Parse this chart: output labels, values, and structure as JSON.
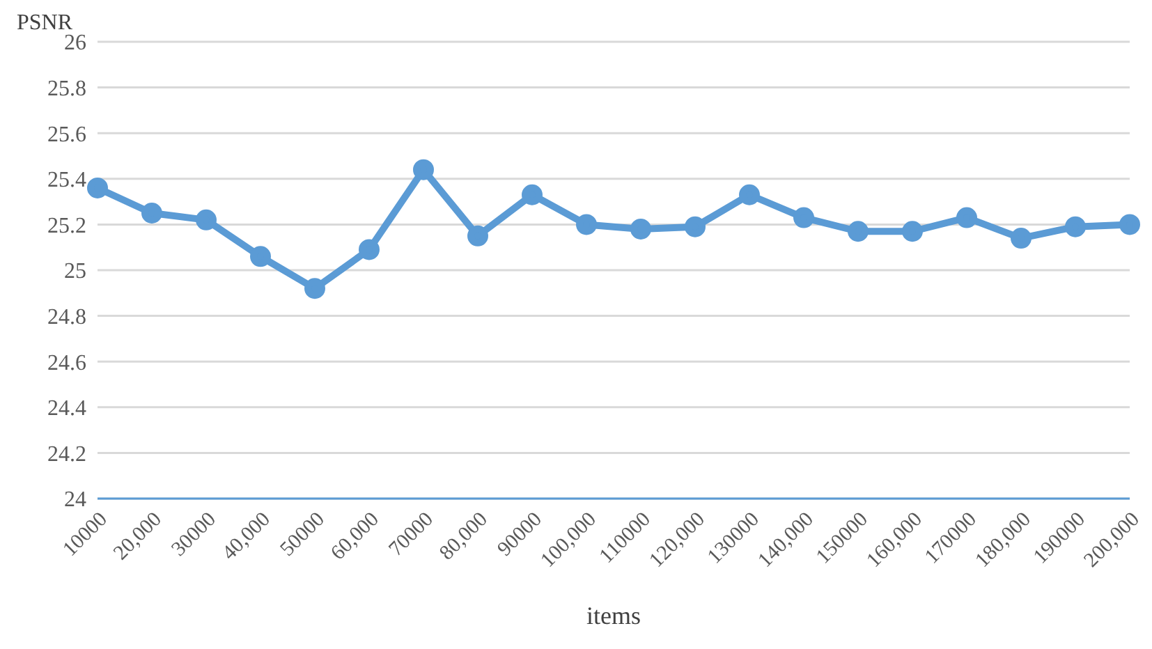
{
  "chart_data": {
    "type": "line",
    "ylabel": "PSNR",
    "xlabel": "items",
    "categories": [
      "10000",
      "20,000",
      "30000",
      "40,000",
      "50000",
      "60,000",
      "70000",
      "80,000",
      "90000",
      "100,000",
      "110000",
      "120,000",
      "130000",
      "140,000",
      "150000",
      "160,000",
      "170000",
      "180,000",
      "190000",
      "200,000"
    ],
    "series": [
      {
        "color": "#5b9bd5",
        "values": [
          25.36,
          25.25,
          25.22,
          25.06,
          24.92,
          25.09,
          25.44,
          25.15,
          25.33,
          25.2,
          25.18,
          25.19,
          25.33,
          25.23,
          25.17,
          25.17,
          25.23,
          25.14,
          25.19,
          25.2
        ]
      }
    ],
    "ylim": [
      24,
      26
    ],
    "yticks": [
      24,
      24.2,
      24.4,
      24.6,
      24.8,
      25,
      25.2,
      25.4,
      25.6,
      25.8,
      26
    ],
    "grid": "y",
    "marker": "circle",
    "line_style": "solid",
    "legend": false
  }
}
